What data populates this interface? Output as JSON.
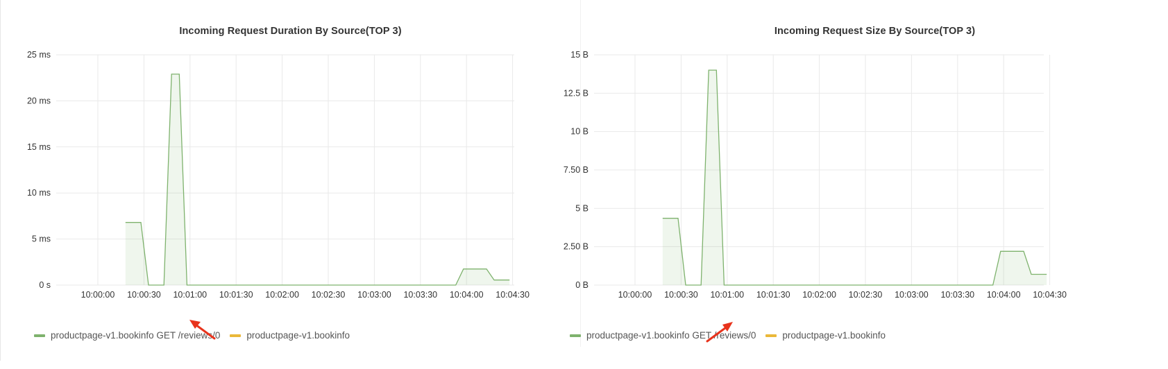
{
  "colors": {
    "series_green": "#7eb26d",
    "series_fill": "rgba(126,178,109,0.12)",
    "series_yellow": "#eab839",
    "grid": "#e9e9e9",
    "tick_text": "#333333",
    "annotation_arrow": "#e8331c"
  },
  "icons": {
    "annotation": "red-arrow-icon"
  },
  "chart_data": [
    {
      "type": "area",
      "title": "Incoming Request Duration By Source(TOP 3)",
      "xlabel": "",
      "ylabel": "",
      "x_ticks": [
        "10:00:00",
        "10:00:30",
        "10:01:00",
        "10:01:30",
        "10:02:00",
        "10:02:30",
        "10:03:00",
        "10:03:30",
        "10:04:00",
        "10:04:30"
      ],
      "y_ticks": [
        "0 s",
        "5 ms",
        "10 ms",
        "15 ms",
        "20 ms",
        "25 ms"
      ],
      "ylim": [
        0,
        25
      ],
      "y_unit": "ms",
      "grid": true,
      "legend_position": "bottom-left",
      "legend": [
        "productpage-v1.bookinfo GET /reviews/0",
        "productpage-v1.bookinfo"
      ],
      "series": [
        {
          "name": "productpage-v1.bookinfo GET /reviews/0",
          "color": "#7eb26d",
          "points": [
            [
              "10:00:18",
              6.8
            ],
            [
              "10:00:28",
              6.8
            ],
            [
              "10:00:33",
              0
            ],
            [
              "10:00:43",
              0
            ],
            [
              "10:00:48",
              22.9
            ],
            [
              "10:00:53",
              22.9
            ],
            [
              "10:00:58",
              0
            ],
            [
              "10:03:53",
              0
            ],
            [
              "10:03:58",
              1.75
            ],
            [
              "10:04:13",
              1.75
            ],
            [
              "10:04:18",
              0.55
            ],
            [
              "10:04:28",
              0.55
            ]
          ]
        },
        {
          "name": "productpage-v1.bookinfo",
          "color": "#eab839",
          "points": []
        }
      ]
    },
    {
      "type": "area",
      "title": "Incoming Request Size By Source(TOP 3)",
      "xlabel": "",
      "ylabel": "",
      "x_ticks": [
        "10:00:00",
        "10:00:30",
        "10:01:00",
        "10:01:30",
        "10:02:00",
        "10:02:30",
        "10:03:00",
        "10:03:30",
        "10:04:00",
        "10:04:30"
      ],
      "y_ticks": [
        "0 B",
        "2.50 B",
        "5 B",
        "7.50 B",
        "10 B",
        "12.5 B",
        "15 B"
      ],
      "ylim": [
        0,
        15
      ],
      "y_unit": "B",
      "grid": true,
      "legend_position": "bottom-left",
      "legend": [
        "productpage-v1.bookinfo GET /reviews/0",
        "productpage-v1.bookinfo"
      ],
      "series": [
        {
          "name": "productpage-v1.bookinfo GET /reviews/0",
          "color": "#7eb26d",
          "points": [
            [
              "10:00:18",
              4.35
            ],
            [
              "10:00:28",
              4.35
            ],
            [
              "10:00:33",
              0
            ],
            [
              "10:00:43",
              0
            ],
            [
              "10:00:48",
              14.0
            ],
            [
              "10:00:53",
              14.0
            ],
            [
              "10:00:58",
              0
            ],
            [
              "10:03:53",
              0
            ],
            [
              "10:03:58",
              2.2
            ],
            [
              "10:04:13",
              2.2
            ],
            [
              "10:04:18",
              0.7
            ],
            [
              "10:04:28",
              0.7
            ]
          ]
        },
        {
          "name": "productpage-v1.bookinfo",
          "color": "#eab839",
          "points": []
        }
      ]
    }
  ]
}
